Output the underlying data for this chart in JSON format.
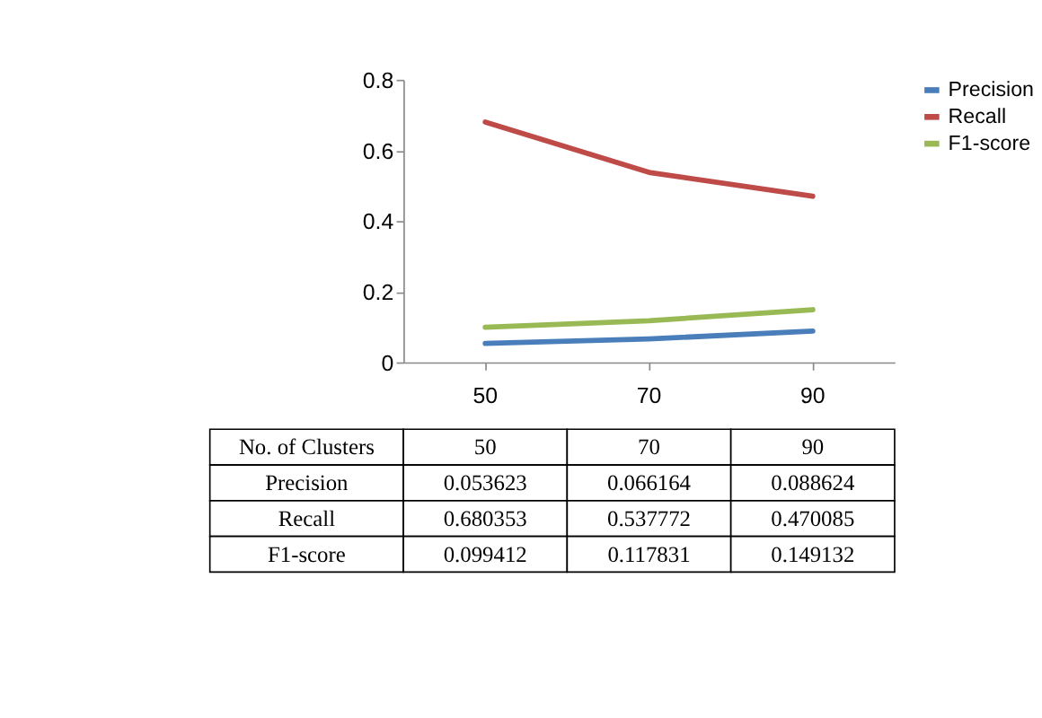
{
  "chart_data": {
    "type": "line",
    "xlabel": "No. of Clusters",
    "categories": [
      "50",
      "70",
      "90"
    ],
    "series": [
      {
        "name": "Precision",
        "color": "#4a7ebb",
        "values": [
          0.053623,
          0.066164,
          0.088624
        ]
      },
      {
        "name": "Recall",
        "color": "#be4b48",
        "values": [
          0.680353,
          0.537772,
          0.470085
        ]
      },
      {
        "name": "F1-score",
        "color": "#98b954",
        "values": [
          0.099412,
          0.117831,
          0.149132
        ]
      }
    ],
    "ylim": [
      0,
      0.8
    ],
    "yticks": [
      {
        "value": 0,
        "label": "0"
      },
      0.2,
      0.4,
      0.6,
      0.8
    ],
    "grid": false,
    "legend": "right",
    "marker": "none",
    "line_style": "solid",
    "data_labels": true
  }
}
